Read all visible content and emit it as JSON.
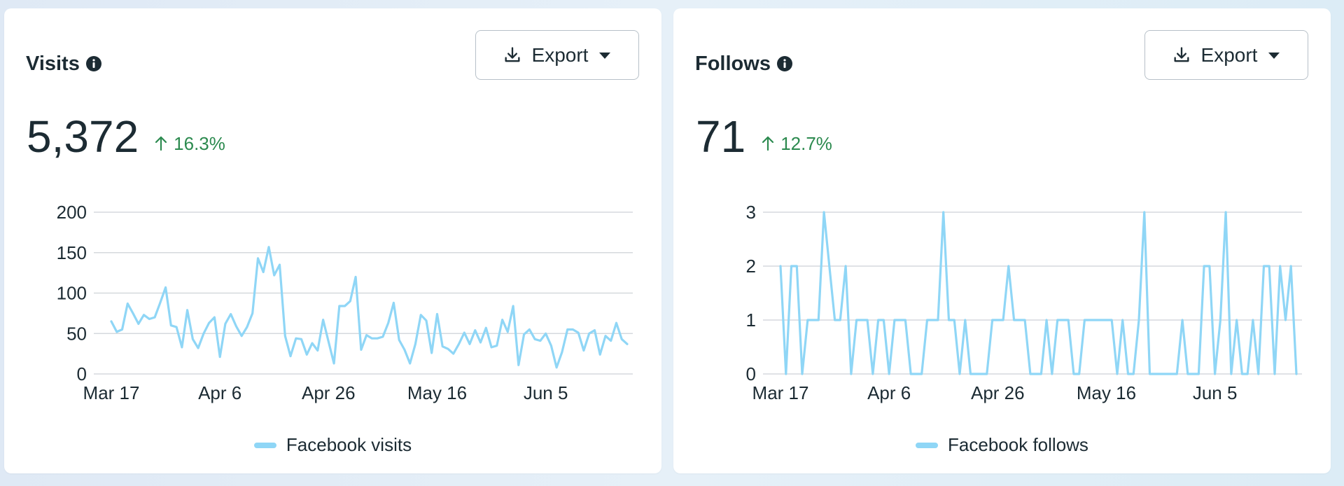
{
  "accent_color": "#8fd6f6",
  "positive_color": "#2c8a4f",
  "cards": [
    {
      "title": "Visits",
      "info_icon": "info-icon",
      "export_label": "Export",
      "metric": "5,372",
      "change": "16.3%",
      "legend": "Facebook visits"
    },
    {
      "title": "Follows",
      "info_icon": "info-icon",
      "export_label": "Export",
      "metric": "71",
      "change": "12.7%",
      "legend": "Facebook follows"
    }
  ],
  "chart_data": [
    {
      "type": "line",
      "title": "Visits",
      "x_ticks": [
        "Mar 17",
        "Apr 6",
        "Apr 26",
        "May 16",
        "Jun 5"
      ],
      "x_tick_index": [
        0,
        20,
        40,
        60,
        80
      ],
      "y_ticks": [
        0,
        50,
        100,
        150,
        200
      ],
      "ylim": [
        0,
        200
      ],
      "grid": true,
      "legend_placement": "bottom-center",
      "series": [
        {
          "name": "Facebook visits",
          "color": "#8fd6f6",
          "values": [
            65,
            52,
            55,
            87,
            75,
            62,
            73,
            68,
            70,
            88,
            107,
            60,
            58,
            33,
            79,
            43,
            32,
            50,
            63,
            70,
            21,
            62,
            74,
            59,
            47,
            58,
            75,
            143,
            126,
            157,
            122,
            135,
            47,
            22,
            44,
            43,
            24,
            38,
            29,
            67,
            40,
            13,
            84,
            84,
            90,
            120,
            30,
            48,
            44,
            44,
            46,
            63,
            88,
            42,
            30,
            13,
            37,
            73,
            66,
            26,
            74,
            34,
            31,
            25,
            37,
            51,
            37,
            54,
            39,
            57,
            33,
            35,
            67,
            52,
            84,
            11,
            49,
            55,
            43,
            41,
            50,
            35,
            8,
            27,
            55,
            55,
            51,
            29,
            50,
            54,
            24,
            47,
            41,
            63,
            43,
            37
          ]
        }
      ]
    },
    {
      "type": "line",
      "title": "Follows",
      "x_ticks": [
        "Mar 17",
        "Apr 6",
        "Apr 26",
        "May 16",
        "Jun 5"
      ],
      "x_tick_index": [
        0,
        20,
        40,
        60,
        80
      ],
      "y_ticks": [
        0,
        1,
        2,
        3
      ],
      "ylim": [
        0,
        3
      ],
      "grid": true,
      "legend_placement": "bottom-center",
      "series": [
        {
          "name": "Facebook follows",
          "color": "#8fd6f6",
          "values": [
            2,
            0,
            2,
            2,
            0,
            1,
            1,
            1,
            3,
            2,
            1,
            1,
            2,
            0,
            1,
            1,
            1,
            0,
            1,
            1,
            0,
            1,
            1,
            1,
            0,
            0,
            0,
            1,
            1,
            1,
            3,
            1,
            1,
            0,
            1,
            0,
            0,
            0,
            0,
            1,
            1,
            1,
            2,
            1,
            1,
            1,
            0,
            0,
            0,
            1,
            0,
            1,
            1,
            1,
            0,
            0,
            1,
            1,
            1,
            1,
            1,
            1,
            0,
            1,
            0,
            0,
            1,
            3,
            0,
            0,
            0,
            0,
            0,
            0,
            1,
            0,
            0,
            0,
            2,
            2,
            0,
            1,
            3,
            0,
            1,
            0,
            0,
            1,
            0,
            2,
            2,
            0,
            2,
            1,
            2,
            0
          ]
        }
      ]
    }
  ]
}
